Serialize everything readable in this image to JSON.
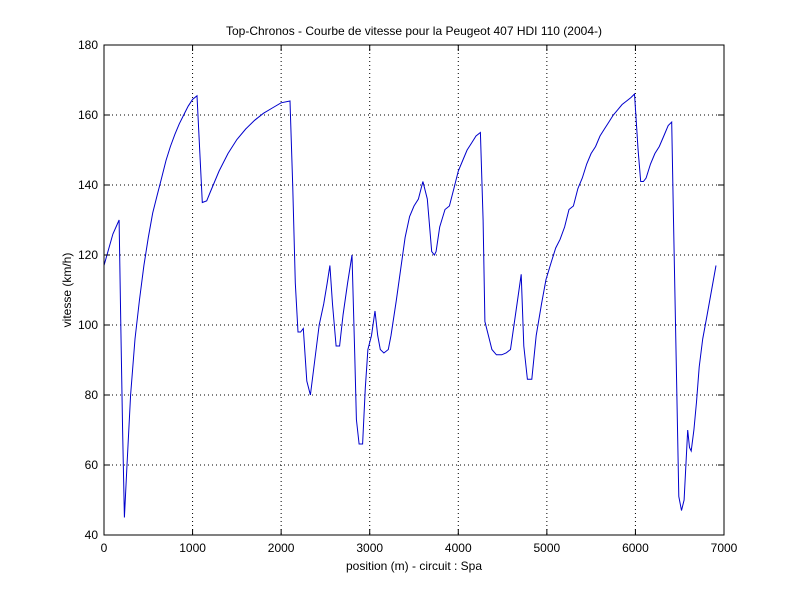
{
  "chart_data": {
    "type": "line",
    "title": "Top-Chronos - Courbe de vitesse pour la Peugeot 407 HDI 110 (2004-)",
    "xlabel": "position (m) - circuit : Spa",
    "ylabel": "vitesse (km/h)",
    "xlim": [
      0,
      7000
    ],
    "ylim": [
      40,
      180
    ],
    "xticks": [
      0,
      1000,
      2000,
      3000,
      4000,
      5000,
      6000,
      7000
    ],
    "yticks": [
      40,
      60,
      80,
      100,
      120,
      140,
      160,
      180
    ],
    "grid": true,
    "line_color": "#0000cc",
    "series": [
      {
        "x": [
          0,
          100,
          170,
          190,
          210,
          230,
          260,
          300,
          350,
          400,
          450,
          500,
          550,
          600,
          650,
          700,
          750,
          800,
          850,
          900,
          950,
          1000,
          1050,
          1080,
          1110,
          1160,
          1200,
          1250,
          1300,
          1400,
          1500,
          1600,
          1700,
          1800,
          1900,
          2000,
          2100,
          2130,
          2160,
          2190,
          2220,
          2250,
          2290,
          2330,
          2380,
          2430,
          2480,
          2520,
          2550,
          2580,
          2620,
          2660,
          2700,
          2750,
          2800,
          2830,
          2850,
          2880,
          2920,
          2950,
          2980,
          3020,
          3060,
          3090,
          3120,
          3160,
          3210,
          3240,
          3300,
          3350,
          3400,
          3450,
          3500,
          3550,
          3600,
          3650,
          3700,
          3730,
          3750,
          3790,
          3850,
          3900,
          3950,
          4000,
          4050,
          4100,
          4150,
          4200,
          4250,
          4280,
          4300,
          4340,
          4380,
          4430,
          4490,
          4540,
          4590,
          4640,
          4680,
          4710,
          4740,
          4780,
          4830,
          4880,
          4940,
          4990,
          5050,
          5100,
          5150,
          5200,
          5250,
          5300,
          5350,
          5400,
          5450,
          5500,
          5550,
          5600,
          5650,
          5700,
          5750,
          5800,
          5850,
          5900,
          5950,
          5990,
          6030,
          6060,
          6090,
          6120,
          6170,
          6220,
          6270,
          6320,
          6370,
          6410,
          6430,
          6460,
          6490,
          6520,
          6550,
          6590,
          6610,
          6630,
          6660,
          6690,
          6720,
          6760,
          6810,
          6860,
          6910
        ],
        "y": [
          117,
          126,
          130,
          100,
          70,
          45,
          60,
          80,
          96,
          107,
          117,
          125,
          132,
          137,
          142,
          147,
          151,
          154.5,
          157.5,
          160,
          162.5,
          164.5,
          165.5,
          150,
          135,
          135.5,
          138,
          141,
          144,
          149,
          153,
          156,
          158.5,
          160.5,
          162,
          163.5,
          164,
          140,
          112,
          98,
          98,
          99,
          84,
          80,
          90,
          100,
          106,
          112,
          117,
          106,
          94,
          94,
          103,
          112,
          120,
          92,
          73,
          66,
          66,
          82,
          93,
          97,
          104,
          97,
          93,
          92,
          93,
          97,
          107,
          116,
          125,
          131,
          134,
          136,
          141,
          136,
          121,
          120,
          121,
          128,
          133,
          134,
          139,
          144,
          147,
          150,
          152,
          154,
          155,
          130,
          101,
          97,
          93,
          91.5,
          91.5,
          92,
          93,
          102,
          109,
          114.5,
          94,
          84.5,
          84.5,
          97,
          106,
          113,
          118,
          122,
          124.5,
          128,
          133,
          134,
          139,
          142,
          146,
          149,
          151,
          154,
          156,
          158,
          160,
          161.5,
          163,
          164,
          165,
          166,
          150,
          141,
          141,
          142,
          146,
          149,
          151,
          154,
          157,
          158,
          130,
          90,
          51,
          47,
          50,
          70,
          65,
          64,
          70,
          78,
          88,
          96,
          103,
          110,
          117
        ]
      }
    ]
  }
}
